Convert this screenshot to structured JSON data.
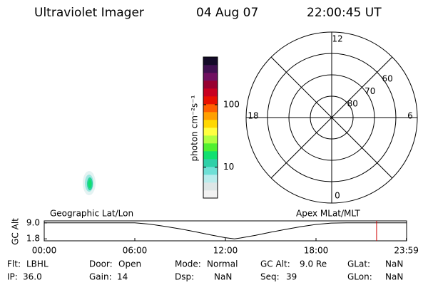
{
  "header": {
    "title": "Ultraviolet Imager",
    "date": "04 Aug 07",
    "time": "22:00:45 UT"
  },
  "colorbar": {
    "label": "photon cm⁻²s⁻¹",
    "log": true,
    "range": [
      3.2,
      580
    ],
    "ticks": [
      10,
      100
    ],
    "colors": [
      "#f2f2f2",
      "#dde6e6",
      "#b8ecec",
      "#6ee0d6",
      "#2ed0a8",
      "#10e070",
      "#50f030",
      "#b0ff40",
      "#ffff40",
      "#ffd800",
      "#ffa000",
      "#ff6000",
      "#e81000",
      "#c80020",
      "#980030",
      "#701060",
      "#401050",
      "#140a28"
    ]
  },
  "polar": {
    "lat_range": [
      90,
      50
    ],
    "rings": [
      80,
      70,
      60
    ],
    "mlt_ticks": [
      0,
      6,
      12,
      18
    ]
  },
  "chart_data": {
    "type": "line",
    "left_label": "Geographic Lat/Lon",
    "right_label": "Apex MLat/MLT",
    "ylabel": "GC Alt",
    "x": [
      0,
      6,
      7,
      8,
      9,
      10,
      11,
      12,
      12.6,
      13,
      14,
      15,
      16,
      17,
      18,
      19,
      20,
      24
    ],
    "values": [
      9.0,
      9.0,
      8.4,
      7.4,
      6.3,
      5.0,
      3.6,
      2.3,
      1.8,
      2.2,
      3.4,
      4.8,
      6.1,
      7.3,
      8.3,
      8.9,
      9.0,
      9.0
    ],
    "color": "#000000",
    "xlim": [
      0,
      24
    ],
    "xticks": [
      {
        "value": 0,
        "label": "00:00"
      },
      {
        "value": 6,
        "label": "06:00"
      },
      {
        "value": 12,
        "label": "12:00"
      },
      {
        "value": 18,
        "label": "18:00"
      },
      {
        "value": 23.983,
        "label": "23:59"
      }
    ],
    "ylim": [
      0.9,
      9.9
    ],
    "yticks": [
      {
        "value": 9,
        "label": "9.0"
      },
      {
        "value": 1.8,
        "label": "1.8"
      }
    ],
    "marker_x": 22.0125,
    "marker_color": "#d00000"
  },
  "footer": {
    "rows": [
      [
        {
          "label": "Flt:",
          "value": "LBHL"
        },
        {
          "label": "Door:",
          "value": "Open"
        },
        {
          "label": "Mode:",
          "value": "Normal"
        },
        {
          "label": "GC Alt:",
          "value": "9.0 Re"
        },
        {
          "label": "GLat:",
          "value": "NaN"
        }
      ],
      [
        {
          "label": "IP:",
          "value": "36.0"
        },
        {
          "label": "Gain:",
          "value": "14"
        },
        {
          "label": "Dsp:",
          "value": "NaN"
        },
        {
          "label": "Seq:",
          "value": "39"
        },
        {
          "label": "GLon:",
          "value": "NaN"
        }
      ]
    ]
  }
}
